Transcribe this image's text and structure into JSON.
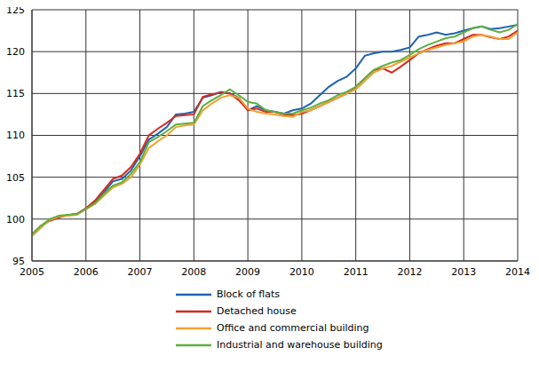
{
  "chart_data": {
    "type": "line",
    "x": [
      2005,
      2005.167,
      2005.333,
      2005.5,
      2005.667,
      2005.833,
      2006,
      2006.167,
      2006.333,
      2006.5,
      2006.667,
      2006.833,
      2007,
      2007.167,
      2007.333,
      2007.5,
      2007.667,
      2007.833,
      2008,
      2008.167,
      2008.333,
      2008.5,
      2008.667,
      2008.833,
      2009,
      2009.167,
      2009.333,
      2009.5,
      2009.667,
      2009.833,
      2010,
      2010.167,
      2010.333,
      2010.5,
      2010.667,
      2010.833,
      2011,
      2011.167,
      2011.333,
      2011.5,
      2011.667,
      2011.833,
      2012,
      2012.167,
      2012.333,
      2012.5,
      2012.667,
      2012.833,
      2013,
      2013.167,
      2013.333,
      2013.5,
      2013.667,
      2013.833,
      2014
    ],
    "series": [
      {
        "name": "Block of flats",
        "color": "#1f63b0",
        "values": [
          98.0,
          99.0,
          100.0,
          100.3,
          100.5,
          100.6,
          101.2,
          102.0,
          103.2,
          104.5,
          104.8,
          105.8,
          107.5,
          109.5,
          110.2,
          111.0,
          112.5,
          112.6,
          112.8,
          114.5,
          114.8,
          115.2,
          115.0,
          114.5,
          113.0,
          113.5,
          113.0,
          112.8,
          112.6,
          113.0,
          113.2,
          113.8,
          114.8,
          115.8,
          116.5,
          117.0,
          118.0,
          119.5,
          119.8,
          120.0,
          120.0,
          120.2,
          120.5,
          121.8,
          122.0,
          122.3,
          122.0,
          122.2,
          122.5,
          122.8,
          123.0,
          122.7,
          122.8,
          123.0,
          123.2
        ]
      },
      {
        "name": "Detached house",
        "color": "#d42a20",
        "values": [
          98.2,
          99.2,
          99.8,
          100.2,
          100.5,
          100.6,
          101.3,
          102.2,
          103.5,
          104.8,
          105.2,
          106.2,
          107.8,
          110.0,
          110.8,
          111.5,
          112.3,
          112.4,
          112.5,
          114.6,
          114.9,
          115.1,
          115.0,
          114.2,
          113.0,
          113.2,
          112.8,
          112.8,
          112.5,
          112.4,
          112.6,
          113.0,
          113.5,
          114.0,
          114.5,
          115.0,
          115.8,
          116.8,
          117.8,
          118.0,
          117.5,
          118.2,
          119.0,
          119.8,
          120.3,
          120.7,
          121.0,
          121.0,
          121.5,
          122.0,
          122.0,
          121.7,
          121.5,
          121.8,
          122.5
        ]
      },
      {
        "name": "Office and commercial building",
        "color": "#f4a030",
        "values": [
          98.0,
          99.0,
          99.9,
          100.3,
          100.4,
          100.5,
          101.2,
          101.8,
          102.8,
          103.8,
          104.2,
          105.0,
          106.5,
          108.5,
          109.3,
          110.0,
          111.0,
          111.2,
          111.3,
          113.0,
          113.8,
          114.5,
          114.8,
          114.5,
          113.2,
          112.8,
          112.6,
          112.5,
          112.3,
          112.2,
          112.8,
          113.0,
          113.5,
          114.0,
          114.5,
          115.0,
          115.5,
          116.5,
          117.5,
          118.0,
          118.3,
          118.8,
          119.3,
          119.8,
          120.2,
          120.5,
          120.8,
          121.0,
          121.2,
          121.8,
          122.0,
          121.8,
          121.5,
          121.5,
          122.3
        ]
      },
      {
        "name": "Industrial and warehouse  building",
        "color": "#5cb040",
        "values": [
          98.2,
          99.2,
          100.0,
          100.4,
          100.5,
          100.6,
          101.2,
          101.9,
          103.0,
          104.0,
          104.4,
          105.4,
          106.8,
          109.2,
          109.8,
          110.5,
          111.3,
          111.4,
          111.5,
          113.5,
          114.2,
          114.8,
          115.5,
          114.8,
          114.0,
          113.8,
          113.0,
          112.8,
          112.6,
          112.6,
          113.0,
          113.3,
          113.8,
          114.2,
          114.8,
          115.2,
          115.8,
          116.8,
          117.8,
          118.3,
          118.7,
          119.0,
          119.6,
          120.3,
          120.8,
          121.2,
          121.6,
          121.8,
          122.3,
          122.8,
          123.0,
          122.6,
          122.3,
          122.6,
          123.3
        ]
      }
    ],
    "xlim": [
      2005,
      2014
    ],
    "xticks": [
      2005,
      2006,
      2007,
      2008,
      2009,
      2010,
      2011,
      2012,
      2013,
      2014
    ],
    "ylim": [
      95,
      125
    ],
    "yticks": [
      95,
      100,
      105,
      110,
      115,
      120,
      125
    ],
    "grid": true,
    "legend": "bottom"
  }
}
